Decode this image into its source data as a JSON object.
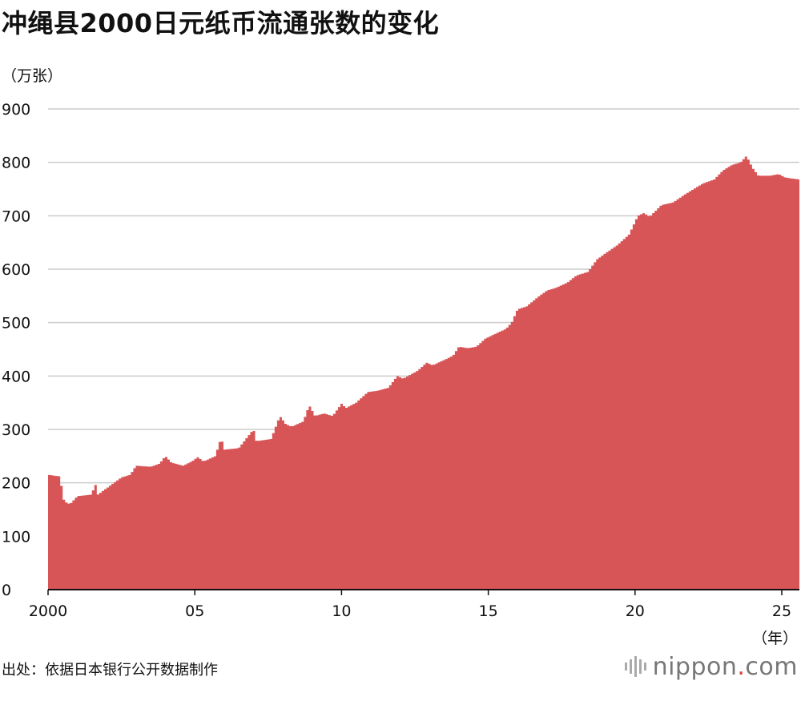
{
  "title": "冲绳县2000日元纸币流通张数的变化",
  "unit_label": "（万张）",
  "x_unit_label": "（年）",
  "source": "出处：依据日本银行公开数据制作",
  "brand": {
    "name": "nippon",
    "dot": ".",
    "tld": "com"
  },
  "colors": {
    "fill": "#d85557",
    "grid": "#cccccc",
    "axis": "#111111"
  },
  "chart_data": {
    "type": "area",
    "ylim": [
      0,
      900
    ],
    "yticks": [
      "0",
      "100",
      "200",
      "300",
      "400",
      "500",
      "600",
      "700",
      "800",
      "900"
    ],
    "xlim": [
      2000.0,
      2025.6
    ],
    "xticks": [
      {
        "label": "2000",
        "year": 2000
      },
      {
        "label": "05",
        "year": 2005
      },
      {
        "label": "10",
        "year": 2010
      },
      {
        "label": "15",
        "year": 2015
      },
      {
        "label": "20",
        "year": 2020
      },
      {
        "label": "25",
        "year": 2025
      }
    ],
    "grid": true,
    "points": [
      [
        2000.0,
        215
      ],
      [
        2000.4,
        212
      ],
      [
        2000.55,
        165
      ],
      [
        2000.75,
        160
      ],
      [
        2001.0,
        175
      ],
      [
        2001.5,
        178
      ],
      [
        2001.6,
        200
      ],
      [
        2001.7,
        178
      ],
      [
        2002.0,
        190
      ],
      [
        2002.5,
        210
      ],
      [
        2002.8,
        215
      ],
      [
        2003.0,
        232
      ],
      [
        2003.5,
        230
      ],
      [
        2003.8,
        236
      ],
      [
        2004.0,
        250
      ],
      [
        2004.2,
        238
      ],
      [
        2004.6,
        232
      ],
      [
        2004.9,
        240
      ],
      [
        2005.1,
        248
      ],
      [
        2005.3,
        240
      ],
      [
        2005.7,
        250
      ],
      [
        2005.9,
        285
      ],
      [
        2006.0,
        262
      ],
      [
        2006.5,
        265
      ],
      [
        2007.0,
        300
      ],
      [
        2007.1,
        278
      ],
      [
        2007.6,
        282
      ],
      [
        2007.9,
        325
      ],
      [
        2008.1,
        310
      ],
      [
        2008.3,
        305
      ],
      [
        2008.7,
        315
      ],
      [
        2008.9,
        345
      ],
      [
        2009.1,
        325
      ],
      [
        2009.4,
        330
      ],
      [
        2009.7,
        325
      ],
      [
        2010.0,
        348
      ],
      [
        2010.15,
        340
      ],
      [
        2010.5,
        350
      ],
      [
        2010.9,
        370
      ],
      [
        2011.2,
        372
      ],
      [
        2011.6,
        378
      ],
      [
        2011.9,
        400
      ],
      [
        2012.1,
        395
      ],
      [
        2012.6,
        410
      ],
      [
        2012.9,
        425
      ],
      [
        2013.1,
        420
      ],
      [
        2013.5,
        430
      ],
      [
        2013.8,
        438
      ],
      [
        2014.0,
        455
      ],
      [
        2014.3,
        452
      ],
      [
        2014.6,
        455
      ],
      [
        2014.9,
        470
      ],
      [
        2015.2,
        478
      ],
      [
        2015.6,
        488
      ],
      [
        2015.8,
        500
      ],
      [
        2016.0,
        525
      ],
      [
        2016.3,
        530
      ],
      [
        2016.7,
        548
      ],
      [
        2017.0,
        560
      ],
      [
        2017.3,
        565
      ],
      [
        2017.7,
        575
      ],
      [
        2018.0,
        588
      ],
      [
        2018.4,
        595
      ],
      [
        2018.7,
        618
      ],
      [
        2019.0,
        630
      ],
      [
        2019.4,
        645
      ],
      [
        2019.8,
        665
      ],
      [
        2020.1,
        700
      ],
      [
        2020.3,
        705
      ],
      [
        2020.5,
        698
      ],
      [
        2020.9,
        720
      ],
      [
        2021.3,
        725
      ],
      [
        2021.7,
        740
      ],
      [
        2022.0,
        750
      ],
      [
        2022.3,
        760
      ],
      [
        2022.7,
        768
      ],
      [
        2023.0,
        785
      ],
      [
        2023.3,
        795
      ],
      [
        2023.6,
        800
      ],
      [
        2023.8,
        812
      ],
      [
        2024.0,
        790
      ],
      [
        2024.2,
        775
      ],
      [
        2024.6,
        775
      ],
      [
        2024.9,
        778
      ],
      [
        2025.1,
        772
      ],
      [
        2025.3,
        770
      ],
      [
        2025.6,
        768
      ]
    ]
  }
}
